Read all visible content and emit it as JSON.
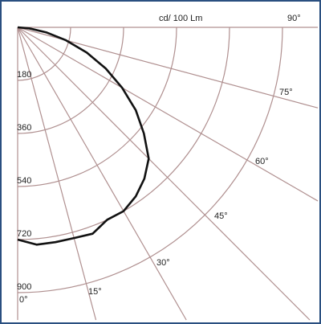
{
  "chart_data": {
    "type": "polar-line",
    "unit_label": "cd/ 100 Lm",
    "radial_ticks": [
      "180",
      "360",
      "540",
      "720",
      "900"
    ],
    "radial_values": [
      180,
      360,
      540,
      720,
      900
    ],
    "radial_max": 900,
    "angle_labels": [
      "0°",
      "15°",
      "30°",
      "45°",
      "60°",
      "75°",
      "90°"
    ],
    "angles": [
      0,
      15,
      30,
      45,
      60,
      75,
      90
    ],
    "series": [
      {
        "angles": [
          0,
          5,
          10,
          15,
          20,
          25,
          30,
          35,
          40,
          45,
          50,
          55,
          60,
          65,
          70,
          75,
          80,
          85,
          90
        ],
        "values": [
          720,
          740,
          740,
          740,
          745,
          720,
          720,
          700,
          670,
          630,
          560,
          490,
          410,
          330,
          250,
          170,
          100,
          40,
          0
        ]
      }
    ],
    "grid": true
  },
  "colors": {
    "frame": "#2a4f80",
    "grid": "#b09090",
    "curve": "#111111"
  }
}
